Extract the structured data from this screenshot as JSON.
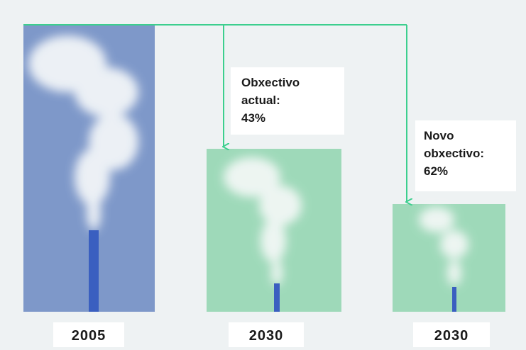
{
  "panels": [
    {
      "year": "2005"
    },
    {
      "year": "2030",
      "label": "Obxectivo actual:",
      "value": "43%"
    },
    {
      "year": "2030",
      "label": "Novo obxectivo:",
      "value": "62%"
    }
  ]
}
